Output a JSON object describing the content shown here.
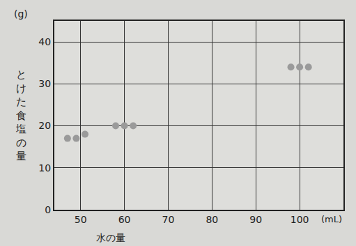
{
  "chart_data": {
    "type": "scatter",
    "x_label": "水の量",
    "y_label": "とけた食塩の量",
    "x_unit": "(mL)",
    "y_unit": "(g)",
    "x": [
      47,
      49,
      51,
      58,
      60,
      62,
      98,
      100,
      102
    ],
    "values": [
      17,
      17,
      18,
      20,
      20,
      20,
      34,
      34,
      34
    ],
    "color": "#9a9a9a",
    "marker": "circle",
    "xlim": [
      44,
      110
    ],
    "xticks": [
      50,
      60,
      70,
      80,
      90,
      100
    ],
    "ylim": [
      0,
      45
    ],
    "yticks": [
      0,
      10,
      20,
      30,
      40
    ],
    "grid": true
  }
}
